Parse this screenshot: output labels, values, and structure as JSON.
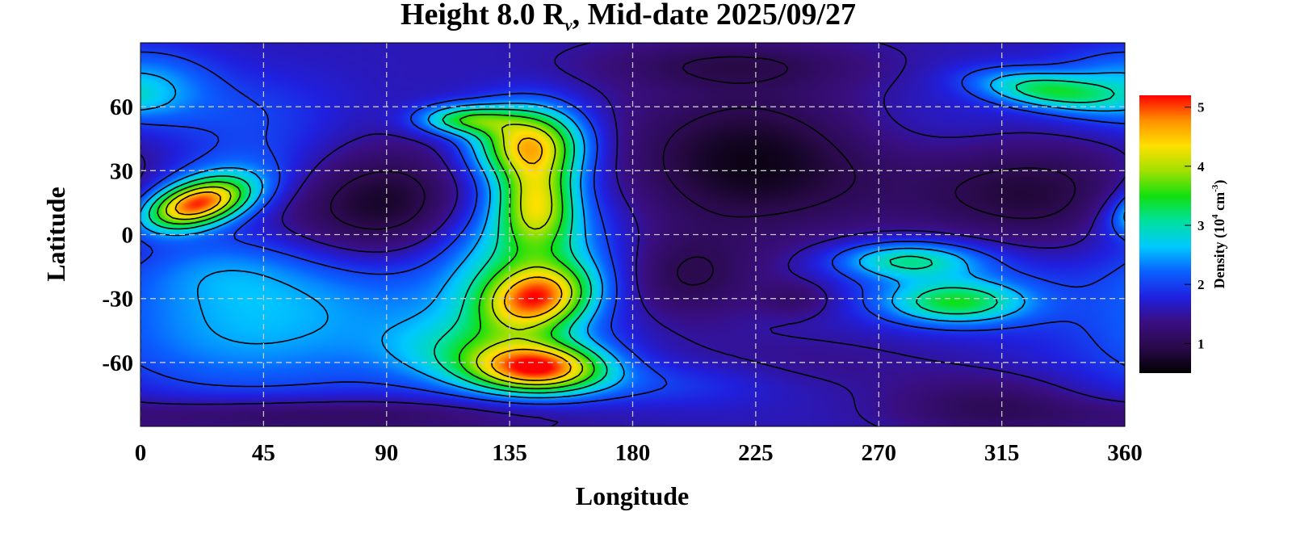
{
  "chart_data": {
    "type": "heatmap",
    "title_main": "Height 8.0 R",
    "title_sub": "v",
    "title_rest": ", Mid-date 2025/09/27",
    "xlabel": "Longitude",
    "ylabel": "Latitude",
    "xlim": [
      0,
      360
    ],
    "ylim": [
      -90,
      90
    ],
    "xticks": [
      "0",
      "45",
      "90",
      "135",
      "180",
      "225",
      "270",
      "315",
      "360"
    ],
    "yticks": [
      "60",
      "30",
      "0",
      "-30",
      "-60"
    ],
    "grid": true,
    "colorbar": {
      "label_pre": "Density (10",
      "label_exp1": "4",
      "label_mid": " cm",
      "label_exp2": "-3",
      "label_post": ")",
      "range": [
        0.5,
        5.2
      ],
      "ticks": [
        "1",
        "2",
        "3",
        "4",
        "5"
      ],
      "colormap": [
        "#000000",
        "#2a0a4a",
        "#3a0e80",
        "#2020e0",
        "#0a60ff",
        "#00c8ff",
        "#00e0a0",
        "#10e010",
        "#a0e000",
        "#ffe000",
        "#ff9000",
        "#ff0000"
      ]
    },
    "background_density": 1.6,
    "features": [
      {
        "lon": 20,
        "lat": 14,
        "sx": 14,
        "sy": 7,
        "amp": 3.0,
        "rot": -0.35
      },
      {
        "lon": 28,
        "lat": 22,
        "sx": 22,
        "sy": 12,
        "amp": 0.8,
        "rot": -0.3
      },
      {
        "lon": 0,
        "lat": 70,
        "sx": 18,
        "sy": 12,
        "amp": 0.9
      },
      {
        "lon": 40,
        "lat": 55,
        "sx": 25,
        "sy": 15,
        "amp": 0.4
      },
      {
        "lon": 95,
        "lat": 15,
        "sx": 25,
        "sy": 18,
        "amp": -0.7
      },
      {
        "lon": 75,
        "lat": 5,
        "sx": 30,
        "sy": 25,
        "amp": -0.3
      },
      {
        "lon": 142,
        "lat": 43,
        "sx": 14,
        "sy": 12,
        "amp": 2.7
      },
      {
        "lon": 118,
        "lat": 54,
        "sx": 12,
        "sy": 5,
        "amp": 1.6
      },
      {
        "lon": 145,
        "lat": 15,
        "sx": 10,
        "sy": 14,
        "amp": 1.9
      },
      {
        "lon": 140,
        "lat": -10,
        "sx": 22,
        "sy": 25,
        "amp": 1.4
      },
      {
        "lon": 145,
        "lat": -30,
        "sx": 14,
        "sy": 10,
        "amp": 2.4,
        "rot": -0.3
      },
      {
        "lon": 146,
        "lat": -63,
        "sx": 17,
        "sy": 8,
        "amp": 2.8
      },
      {
        "lon": 125,
        "lat": -55,
        "sx": 25,
        "sy": 12,
        "amp": 1.2
      },
      {
        "lon": 40,
        "lat": -45,
        "sx": 40,
        "sy": 22,
        "amp": 0.9
      },
      {
        "lon": 85,
        "lat": -25,
        "sx": 35,
        "sy": 15,
        "amp": 0.4
      },
      {
        "lon": 30,
        "lat": -15,
        "sx": 25,
        "sy": 12,
        "amp": 0.5
      },
      {
        "lon": 225,
        "lat": 35,
        "sx": 35,
        "sy": 25,
        "amp": -1.0
      },
      {
        "lon": 215,
        "lat": 80,
        "sx": 35,
        "sy": 8,
        "amp": -0.5
      },
      {
        "lon": 200,
        "lat": -20,
        "sx": 18,
        "sy": 14,
        "amp": -0.6
      },
      {
        "lon": 240,
        "lat": -30,
        "sx": 10,
        "sy": 6,
        "amp": -0.4
      },
      {
        "lon": 325,
        "lat": 20,
        "sx": 32,
        "sy": 22,
        "amp": -0.8
      },
      {
        "lon": 310,
        "lat": -80,
        "sx": 25,
        "sy": 10,
        "amp": -0.5
      },
      {
        "lon": 330,
        "lat": 68,
        "sx": 18,
        "sy": 6,
        "amp": 1.5,
        "rot": 0.15
      },
      {
        "lon": 280,
        "lat": -12,
        "sx": 18,
        "sy": 6,
        "amp": 1.3
      },
      {
        "lon": 298,
        "lat": -32,
        "sx": 18,
        "sy": 7,
        "amp": 1.5
      },
      {
        "lon": 300,
        "lat": -20,
        "sx": 30,
        "sy": 15,
        "amp": 0.5
      },
      {
        "lon": 240,
        "lat": -60,
        "sx": 40,
        "sy": 10,
        "amp": -0.2
      },
      {
        "lon": 190,
        "lat": -70,
        "sx": 30,
        "sy": 8,
        "amp": 0.4
      },
      {
        "lon": 60,
        "lat": -85,
        "sx": 60,
        "sy": 6,
        "amp": -0.6
      },
      {
        "lon": 300,
        "lat": 50,
        "sx": 40,
        "sy": 15,
        "amp": 0.3
      }
    ],
    "contour_levels": [
      1.0,
      1.5,
      2.0,
      2.5,
      3.0,
      3.5,
      4.0,
      4.5
    ]
  }
}
